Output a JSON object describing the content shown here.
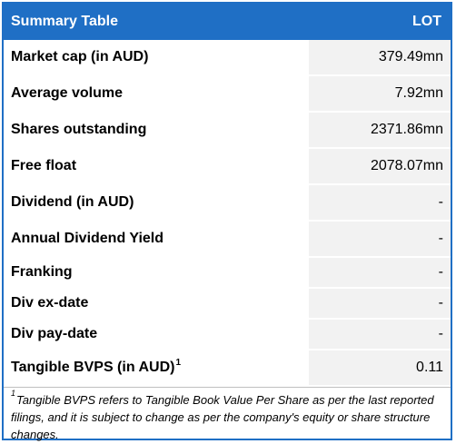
{
  "header": {
    "title": "Summary Table",
    "ticker": "LOT"
  },
  "rows": [
    {
      "label": "Market cap (in AUD)",
      "value": "379.49mn"
    },
    {
      "label": "Average volume",
      "value": "7.92mn"
    },
    {
      "label": "Shares outstanding",
      "value": "2371.86mn"
    },
    {
      "label": "Free float",
      "value": "2078.07mn"
    },
    {
      "label": "Dividend (in AUD)",
      "value": "-"
    },
    {
      "label": "Annual Dividend Yield",
      "value": "-"
    },
    {
      "label": "Franking",
      "value": "-"
    },
    {
      "label": "Div ex-date",
      "value": "-"
    },
    {
      "label": "Div pay-date",
      "value": "-"
    },
    {
      "label": "Tangible BVPS (in AUD)",
      "label_sup": "1",
      "value": "0.11"
    }
  ],
  "footnote": {
    "marker": "1",
    "text": "Tangible BVPS refers to Tangible Book Value Per Share as per the last reported filings, and it is subject to change as per the company's equity or share structure changes."
  },
  "colors": {
    "header_bg": "#1f6fc5",
    "value_bg": "#f2f2f2",
    "border": "#1f6fc5"
  }
}
